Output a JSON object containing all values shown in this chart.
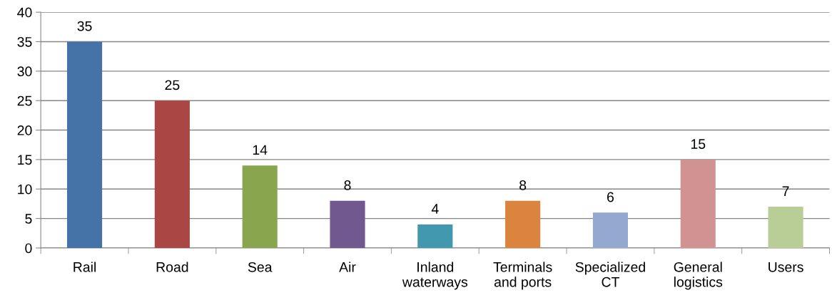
{
  "chart_data": {
    "type": "bar",
    "categories": [
      "Rail",
      "Road",
      "Sea",
      "Air",
      "Inland\nwaterways",
      "Terminals\nand ports",
      "Specialized\nCT",
      "General\nlogistics",
      "Users"
    ],
    "values": [
      35,
      25,
      14,
      8,
      4,
      8,
      6,
      15,
      7
    ],
    "colors": [
      "#4572a7",
      "#aa4643",
      "#89a54e",
      "#71588f",
      "#4198af",
      "#db843d",
      "#93a9cf",
      "#d19392",
      "#b9cd96"
    ],
    "ylim": [
      0,
      40
    ],
    "yticks": [
      0,
      5,
      10,
      15,
      20,
      25,
      30,
      35,
      40
    ],
    "grid": "y",
    "data_labels": true
  }
}
